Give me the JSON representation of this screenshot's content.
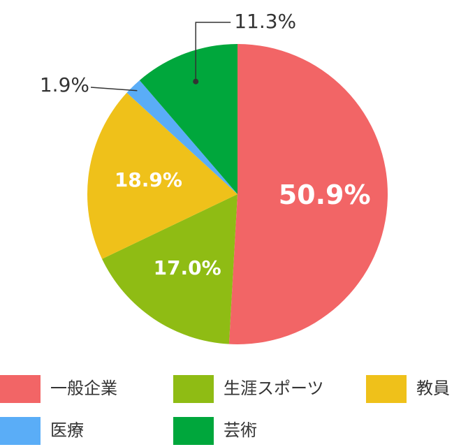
{
  "chart_data": {
    "type": "pie",
    "categories": [
      "一般企業",
      "生涯スポーツ",
      "教員",
      "医療",
      "芸術"
    ],
    "values": [
      50.9,
      17.0,
      18.9,
      1.9,
      11.3
    ],
    "value_labels": [
      "50.9%",
      "17.0%",
      "18.9%",
      "1.9%",
      "11.3%"
    ],
    "colors": [
      "#f26566",
      "#8fbc14",
      "#efc11a",
      "#5aadf7",
      "#00a73c"
    ]
  }
}
